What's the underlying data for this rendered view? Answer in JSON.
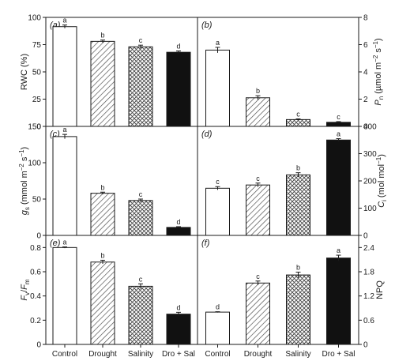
{
  "colors": {
    "ink": "#1a1a1a",
    "bar_fill_control": "#ffffff",
    "bar_fill_dro_sal": "#111111"
  },
  "chart_data": [
    {
      "type": "bar",
      "panel": "(a)",
      "categories": [
        "Control",
        "Drought",
        "Salinity",
        "Dro + Sal"
      ],
      "values": [
        91.5,
        78,
        73,
        68
      ],
      "errors": [
        1.5,
        1.2,
        1.5,
        1.2
      ],
      "significance": [
        "a",
        "b",
        "c",
        "d"
      ],
      "patterns": [
        "open",
        "hatched",
        "crosshatched",
        "solid"
      ],
      "ylabel": "RWC (%)",
      "ylim": [
        0,
        100
      ],
      "yticks": [
        0,
        25,
        50,
        75,
        100
      ],
      "y_axis_side": "left"
    },
    {
      "type": "bar",
      "panel": "(b)",
      "categories": [
        "Control",
        "Drought",
        "Salinity",
        "Dro + Sal"
      ],
      "values": [
        5.6,
        2.1,
        0.5,
        0.3
      ],
      "errors": [
        0.2,
        0.15,
        0.05,
        0.05
      ],
      "significance": [
        "a",
        "b",
        "c",
        "c"
      ],
      "patterns": [
        "open",
        "hatched",
        "crosshatched",
        "solid"
      ],
      "ylabel_main": "P",
      "ylabel_sub": "n",
      "ylabel_rest": " (µmol m",
      "ylabel_sup1": "−2",
      "ylabel_mid": " s",
      "ylabel_sup2": "−1",
      "ylabel_end": ")",
      "ylim": [
        0,
        8
      ],
      "yticks": [
        0,
        2,
        4,
        6,
        8
      ],
      "y_axis_side": "right"
    },
    {
      "type": "bar",
      "panel": "(c)",
      "categories": [
        "Control",
        "Drought",
        "Salinity",
        "Dro + Sal"
      ],
      "values": [
        136,
        58,
        48,
        11
      ],
      "errors": [
        3,
        1.5,
        2,
        1
      ],
      "significance": [
        "a",
        "b",
        "c",
        "d"
      ],
      "patterns": [
        "open",
        "hatched",
        "crosshatched",
        "solid"
      ],
      "ylabel_main": "g",
      "ylabel_sub": "s",
      "ylabel_rest": " (mmol m",
      "ylabel_sup1": "−2",
      "ylabel_mid": " s",
      "ylabel_sup2": "−1",
      "ylabel_end": ")",
      "ylim": [
        0,
        150
      ],
      "yticks": [
        0,
        50,
        100,
        150
      ],
      "y_axis_side": "left"
    },
    {
      "type": "bar",
      "panel": "(d)",
      "categories": [
        "Control",
        "Drought",
        "Salinity",
        "Dro + Sal"
      ],
      "values": [
        173,
        185,
        222,
        350
      ],
      "errors": [
        6,
        7,
        8,
        5
      ],
      "significance": [
        "c",
        "c",
        "b",
        "a"
      ],
      "patterns": [
        "open",
        "hatched",
        "crosshatched",
        "solid"
      ],
      "ylabel_main": "C",
      "ylabel_sub": "i",
      "ylabel_rest": " (mol mol",
      "ylabel_sup1": "−1",
      "ylabel_mid": "",
      "ylabel_sup2": "",
      "ylabel_end": ")",
      "ylim": [
        0,
        400
      ],
      "yticks": [
        0,
        100,
        200,
        300,
        400
      ],
      "y_axis_side": "right"
    },
    {
      "type": "bar",
      "panel": "(e)",
      "categories": [
        "Control",
        "Drought",
        "Salinity",
        "Dro + Sal"
      ],
      "values": [
        0.8,
        0.68,
        0.48,
        0.25
      ],
      "errors": [
        0.005,
        0.015,
        0.02,
        0.015
      ],
      "significance": [
        "a",
        "b",
        "c",
        "d"
      ],
      "patterns": [
        "open",
        "hatched",
        "crosshatched",
        "solid"
      ],
      "ylabel_main": "F",
      "ylabel_sub": "v",
      "ylabel_rest": "/",
      "ylabel_main2": "F",
      "ylabel_sub2": "m",
      "ylim": [
        0,
        0.9
      ],
      "yticks": [
        0,
        0.2,
        0.4,
        0.6,
        0.8
      ],
      "y_axis_side": "left"
    },
    {
      "type": "bar",
      "panel": "(f)",
      "categories": [
        "Control",
        "Drought",
        "Salinity",
        "Dro + Sal"
      ],
      "values": [
        0.8,
        1.52,
        1.72,
        2.14
      ],
      "errors": [
        0.01,
        0.05,
        0.07,
        0.07
      ],
      "significance": [
        "d",
        "c",
        "b",
        "a"
      ],
      "patterns": [
        "open",
        "hatched",
        "crosshatched",
        "solid"
      ],
      "ylabel": "NPQ",
      "ylim": [
        0,
        2.7
      ],
      "yticks": [
        0,
        0.6,
        1.2,
        1.8,
        2.4
      ],
      "y_axis_side": "right"
    }
  ],
  "x_categories": [
    "Control",
    "Drought",
    "Salinity",
    "Dro + Sal"
  ],
  "y_tick_text": {
    "a": [
      "0",
      "25",
      "50",
      "75",
      "100"
    ],
    "b": [
      "0",
      "2",
      "4",
      "6",
      "8"
    ],
    "c": [
      "0",
      "50",
      "100",
      "150"
    ],
    "d": [
      "0",
      "100",
      "200",
      "300",
      "400"
    ],
    "e": [
      "0",
      "0.2",
      "0.4",
      "0.6",
      "0.8"
    ],
    "f": [
      "0",
      "0.6",
      "1.2",
      "1.8",
      "2.4"
    ]
  }
}
